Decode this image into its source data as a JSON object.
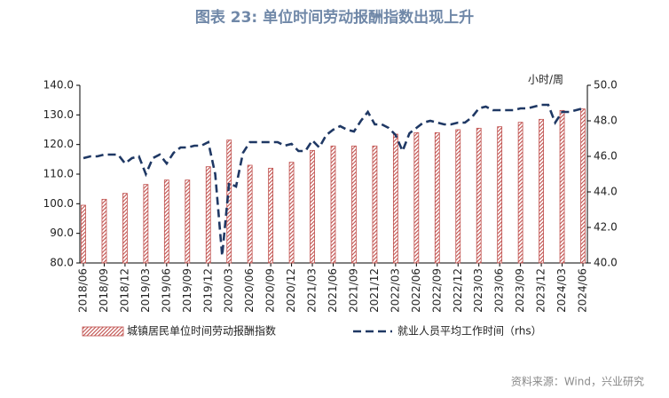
{
  "chart_data": {
    "type": "bar",
    "title": "图表 23: 单位时间劳动报酬指数出现上升",
    "source": "资料来源：Wind，兴业研究",
    "y2_label": "小时/周",
    "categories": [
      "2018/06",
      "2018/09",
      "2018/12",
      "2019/03",
      "2019/06",
      "2019/09",
      "2019/12",
      "2020/03",
      "2020/06",
      "2020/09",
      "2020/12",
      "2021/03",
      "2021/06",
      "2021/09",
      "2021/12",
      "2022/03",
      "2022/06",
      "2022/09",
      "2022/12",
      "2023/03",
      "2023/06",
      "2023/09",
      "2023/12",
      "2024/03",
      "2024/06"
    ],
    "series": [
      {
        "name": "城镇居民单位时间劳动报酬指数",
        "color": "#c0504d",
        "values": [
          99.5,
          101.5,
          103.5,
          106.5,
          108,
          108,
          112.5,
          121.5,
          113,
          112,
          114,
          118,
          119.5,
          119.5,
          119.5,
          123.5,
          124,
          124,
          125,
          125.5,
          126,
          127.5,
          128.5,
          131.5,
          132
        ]
      },
      {
        "name": "就业人员平均工作时间（rhs）",
        "color": "#1f3864",
        "type": "line",
        "axis": "y2",
        "x": [
          "2018/06",
          "2018/07",
          "2018/08",
          "2018/09",
          "2018/10",
          "2018/11",
          "2018/12",
          "2019/01",
          "2019/02",
          "2019/03",
          "2019/04",
          "2019/05",
          "2019/06",
          "2019/07",
          "2019/08",
          "2019/09",
          "2019/10",
          "2019/11",
          "2019/12",
          "2020/01",
          "2020/02",
          "2020/03",
          "2020/04",
          "2020/05",
          "2020/06",
          "2020/07",
          "2020/08",
          "2020/09",
          "2020/10",
          "2020/11",
          "2020/12",
          "2021/01",
          "2021/02",
          "2021/03",
          "2021/04",
          "2021/05",
          "2021/06",
          "2021/07",
          "2021/08",
          "2021/09",
          "2021/10",
          "2021/11",
          "2021/12",
          "2022/01",
          "2022/02",
          "2022/03",
          "2022/04",
          "2022/05",
          "2022/06",
          "2022/07",
          "2022/08",
          "2022/09",
          "2022/10",
          "2022/11",
          "2022/12",
          "2023/01",
          "2023/02",
          "2023/03",
          "2023/04",
          "2023/05",
          "2023/06",
          "2023/07",
          "2023/08",
          "2023/09",
          "2023/10",
          "2023/11",
          "2023/12",
          "2024/01",
          "2024/02",
          "2024/03",
          "2024/04",
          "2024/05",
          "2024/06"
        ],
        "values": [
          45.9,
          46.0,
          46.0,
          46.1,
          46.1,
          46.1,
          45.6,
          45.9,
          46.0,
          45.0,
          45.9,
          46.1,
          45.6,
          46.2,
          46.5,
          46.5,
          46.6,
          46.6,
          46.8,
          45.0,
          40.4,
          44.5,
          44.3,
          46.2,
          46.8,
          46.8,
          46.8,
          46.8,
          46.8,
          46.6,
          46.7,
          46.3,
          46.3,
          46.9,
          46.5,
          47.2,
          47.5,
          47.7,
          47.5,
          47.4,
          48.0,
          48.5,
          47.8,
          47.8,
          47.6,
          47.2,
          46.3,
          47.3,
          47.6,
          47.9,
          48.0,
          47.9,
          47.8,
          47.8,
          47.9,
          47.9,
          48.2,
          48.7,
          48.8,
          48.6,
          48.6,
          48.6,
          48.6,
          48.7,
          48.7,
          48.8,
          48.9,
          48.9,
          47.9,
          48.5,
          48.5,
          48.6,
          48.7
        ]
      }
    ],
    "ylim": [
      80,
      140
    ],
    "yticks": [
      {
        "value": 80,
        "label": "80.0"
      },
      {
        "value": 90,
        "label": "90.0"
      },
      {
        "value": 100,
        "label": "100.0"
      },
      {
        "value": 110,
        "label": "110.0"
      },
      {
        "value": 120,
        "label": "120.0"
      },
      {
        "value": 130,
        "label": "130.0"
      },
      {
        "value": 140,
        "label": "140.0"
      }
    ],
    "y2lim": [
      40,
      50
    ],
    "y2ticks": [
      {
        "value": 40,
        "label": "40.0"
      },
      {
        "value": 42,
        "label": "42.0"
      },
      {
        "value": 44,
        "label": "44.0"
      },
      {
        "value": 46,
        "label": "46.0"
      },
      {
        "value": 48,
        "label": "48.0"
      },
      {
        "value": 50,
        "label": "50.0"
      }
    ]
  }
}
